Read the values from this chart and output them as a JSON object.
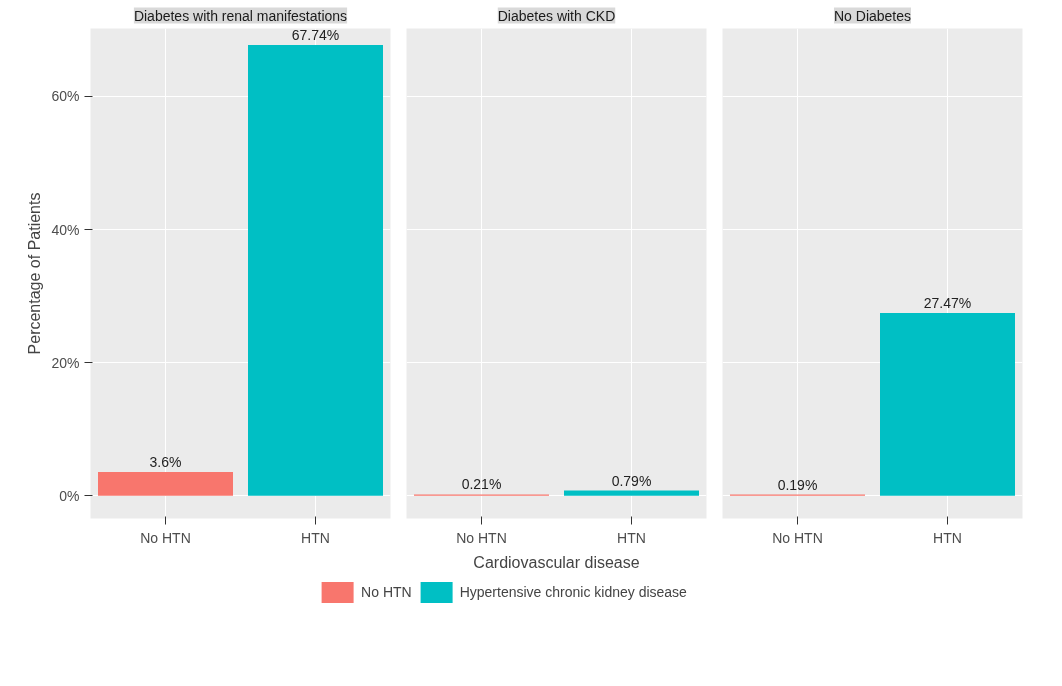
{
  "chart_data": [
    {
      "type": "bar",
      "title": "Diabetes with renal manifestations",
      "ylabel": "Percentage of Patients",
      "categories": [
        "No HTN",
        "HTN"
      ],
      "ylim": [
        -3.4,
        70.2
      ],
      "yticks": [
        {
          "value": 0,
          "label": "0%"
        },
        {
          "value": 20,
          "label": "20%"
        },
        {
          "value": 40,
          "label": "40%"
        },
        {
          "value": 60,
          "label": "60%"
        }
      ],
      "grid": true,
      "series": [
        {
          "color": "#f8766d",
          "values": [
            3.6,
            null
          ],
          "value_labels": [
            "3.6%",
            null
          ]
        },
        {
          "color": "#00bfc4",
          "values": [
            null,
            67.74
          ],
          "value_labels": [
            null,
            "67.74%"
          ]
        }
      ]
    },
    {
      "type": "bar",
      "title": "Diabetes with CKD",
      "xlabel": "Cardiovascular disease",
      "categories": [
        "No HTN",
        "HTN"
      ],
      "ylim": [
        -3.4,
        70.2
      ],
      "yticks": [
        0,
        20,
        40,
        60
      ],
      "grid": true,
      "tick_labels": "x",
      "legend": "bottom",
      "series": [
        {
          "name": "No HTN",
          "color": "#f8766d",
          "values": [
            0.21,
            null
          ],
          "value_labels": [
            "0.21%",
            null
          ]
        },
        {
          "name": "Hypertensive chronic kidney disease",
          "color": "#00bfc4",
          "values": [
            null,
            0.79
          ],
          "value_labels": [
            null,
            "0.79%"
          ]
        }
      ]
    },
    {
      "type": "bar",
      "title": "No Diabetes",
      "categories": [
        "No HTN",
        "HTN"
      ],
      "ylim": [
        -3.4,
        70.2
      ],
      "yticks": [
        0,
        20,
        40,
        60
      ],
      "grid": true,
      "tick_labels": "x",
      "series": [
        {
          "color": "#f8766d",
          "values": [
            0.19,
            null
          ],
          "value_labels": [
            "0.19%",
            null
          ]
        },
        {
          "color": "#00bfc4",
          "values": [
            null,
            27.47
          ],
          "value_labels": [
            null,
            "27.47%"
          ]
        }
      ]
    }
  ]
}
